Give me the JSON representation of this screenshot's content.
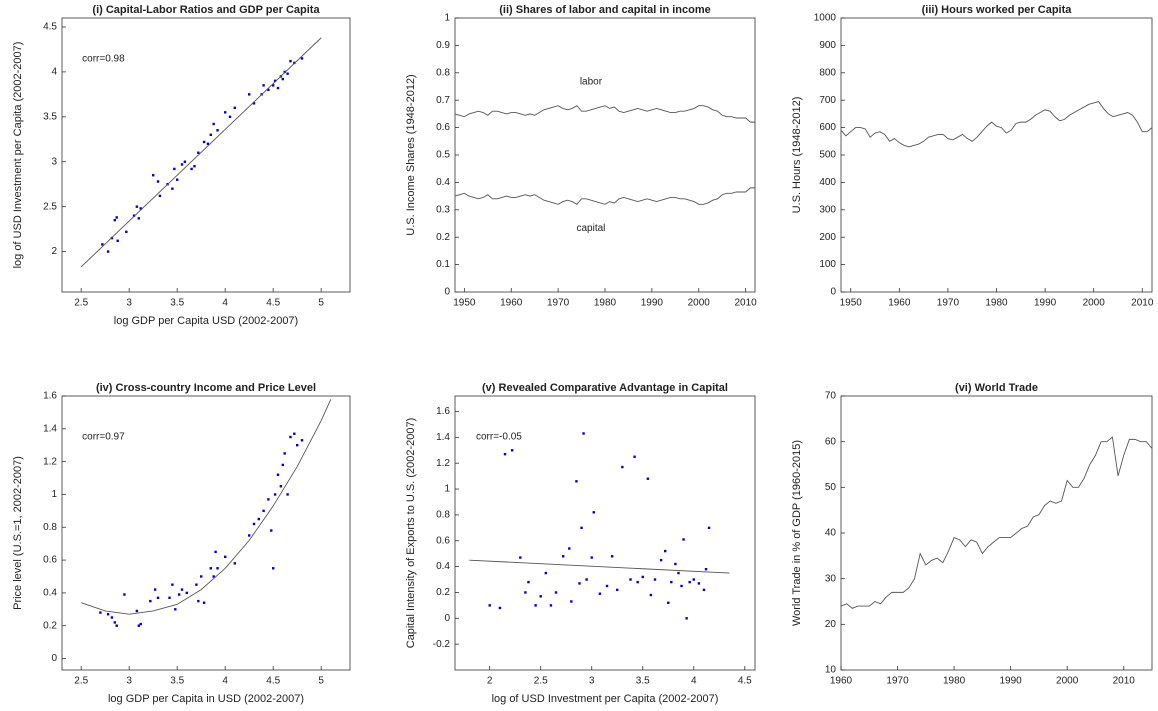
{
  "chart_data": [
    {
      "type": "scatter",
      "title": "(i) Capital-Labor Ratios and GDP per Capita",
      "xlabel": "log GDP per Capita USD (2002-2007)",
      "ylabel": "log of USD Investment per Capita (2002-2007)",
      "annotation": "corr=0.98",
      "xlim": [
        2.3,
        5.3
      ],
      "ylim": [
        1.55,
        4.6
      ],
      "xticks": [
        2.5,
        3,
        3.5,
        4,
        4.5,
        5
      ],
      "yticks": [
        2,
        2.5,
        3,
        3.5,
        4,
        4.5
      ],
      "series": [
        {
          "type": "scatter",
          "color": "#0000cc",
          "x": [
            2.72,
            2.78,
            2.82,
            2.85,
            2.87,
            2.88,
            2.97,
            3.05,
            3.08,
            3.1,
            3.12,
            3.25,
            3.3,
            3.32,
            3.4,
            3.45,
            3.47,
            3.5,
            3.55,
            3.58,
            3.65,
            3.68,
            3.72,
            3.78,
            3.82,
            3.85,
            3.88,
            3.92,
            4.0,
            4.05,
            4.1,
            4.25,
            4.3,
            4.38,
            4.4,
            4.45,
            4.5,
            4.52,
            4.55,
            4.58,
            4.6,
            4.62,
            4.65,
            4.68,
            4.72,
            4.8
          ],
          "values": [
            2.08,
            2,
            2.15,
            2.35,
            2.38,
            2.12,
            2.22,
            2.4,
            2.5,
            2.37,
            2.48,
            2.85,
            2.78,
            2.62,
            2.75,
            2.7,
            2.92,
            2.8,
            2.97,
            3.0,
            2.92,
            2.95,
            3.1,
            3.22,
            3.2,
            3.3,
            3.42,
            3.35,
            3.55,
            3.5,
            3.6,
            3.75,
            3.65,
            3.75,
            3.85,
            3.8,
            3.85,
            3.9,
            3.82,
            3.95,
            3.92,
            4.0,
            3.98,
            4.12,
            4.1,
            4.15
          ]
        },
        {
          "type": "line",
          "color": "#555555",
          "x": [
            2.5,
            5
          ],
          "values": [
            1.83,
            4.38
          ]
        }
      ]
    },
    {
      "type": "line",
      "title": "(ii) Shares of labor and capital in income",
      "ylabel": "U.S. Income Shares (1948-2012)",
      "xlim": [
        1948,
        2012
      ],
      "ylim": [
        0,
        1
      ],
      "xticks": [
        1950,
        1960,
        1970,
        1980,
        1990,
        2000,
        2010
      ],
      "yticks": [
        0,
        0.1,
        0.2,
        0.3,
        0.4,
        0.5,
        0.6,
        0.7,
        0.8,
        0.9,
        1
      ],
      "series": [
        {
          "type": "line",
          "name": "labor",
          "color": "#555555",
          "x": [
            1948,
            1949,
            1950,
            1951,
            1952,
            1953,
            1954,
            1955,
            1956,
            1957,
            1958,
            1959,
            1960,
            1961,
            1962,
            1963,
            1964,
            1965,
            1966,
            1967,
            1968,
            1969,
            1970,
            1971,
            1972,
            1973,
            1974,
            1975,
            1976,
            1977,
            1978,
            1979,
            1980,
            1981,
            1982,
            1983,
            1984,
            1985,
            1986,
            1987,
            1988,
            1989,
            1990,
            1991,
            1992,
            1993,
            1994,
            1995,
            1996,
            1997,
            1998,
            1999,
            2000,
            2001,
            2002,
            2003,
            2004,
            2005,
            2006,
            2007,
            2008,
            2009,
            2010,
            2011,
            2012
          ],
          "values": [
            0.65,
            0.645,
            0.64,
            0.65,
            0.655,
            0.66,
            0.655,
            0.645,
            0.66,
            0.66,
            0.655,
            0.65,
            0.655,
            0.655,
            0.65,
            0.645,
            0.65,
            0.645,
            0.655,
            0.665,
            0.67,
            0.675,
            0.68,
            0.67,
            0.665,
            0.67,
            0.68,
            0.66,
            0.66,
            0.665,
            0.67,
            0.675,
            0.68,
            0.67,
            0.675,
            0.66,
            0.655,
            0.66,
            0.665,
            0.67,
            0.665,
            0.66,
            0.665,
            0.67,
            0.665,
            0.66,
            0.655,
            0.655,
            0.66,
            0.66,
            0.665,
            0.67,
            0.68,
            0.68,
            0.675,
            0.665,
            0.66,
            0.645,
            0.64,
            0.64,
            0.635,
            0.635,
            0.635,
            0.62,
            0.62
          ]
        },
        {
          "type": "line",
          "name": "capital",
          "color": "#555555",
          "x": [
            1948,
            1949,
            1950,
            1951,
            1952,
            1953,
            1954,
            1955,
            1956,
            1957,
            1958,
            1959,
            1960,
            1961,
            1962,
            1963,
            1964,
            1965,
            1966,
            1967,
            1968,
            1969,
            1970,
            1971,
            1972,
            1973,
            1974,
            1975,
            1976,
            1977,
            1978,
            1979,
            1980,
            1981,
            1982,
            1983,
            1984,
            1985,
            1986,
            1987,
            1988,
            1989,
            1990,
            1991,
            1992,
            1993,
            1994,
            1995,
            1996,
            1997,
            1998,
            1999,
            2000,
            2001,
            2002,
            2003,
            2004,
            2005,
            2006,
            2007,
            2008,
            2009,
            2010,
            2011,
            2012
          ],
          "values": [
            0.35,
            0.355,
            0.36,
            0.35,
            0.345,
            0.34,
            0.345,
            0.355,
            0.34,
            0.34,
            0.345,
            0.35,
            0.345,
            0.345,
            0.35,
            0.355,
            0.35,
            0.355,
            0.345,
            0.335,
            0.33,
            0.325,
            0.32,
            0.33,
            0.335,
            0.33,
            0.32,
            0.34,
            0.34,
            0.335,
            0.33,
            0.325,
            0.32,
            0.33,
            0.325,
            0.34,
            0.345,
            0.34,
            0.335,
            0.33,
            0.335,
            0.34,
            0.335,
            0.33,
            0.335,
            0.34,
            0.345,
            0.345,
            0.34,
            0.34,
            0.335,
            0.33,
            0.32,
            0.32,
            0.325,
            0.335,
            0.34,
            0.355,
            0.36,
            0.36,
            0.365,
            0.365,
            0.365,
            0.38,
            0.38
          ]
        }
      ]
    },
    {
      "type": "line",
      "title": "(iii) Hours worked per Capita",
      "ylabel": "U.S. Hours (1948-2012)",
      "xlim": [
        1948,
        2012
      ],
      "ylim": [
        0,
        1000
      ],
      "xticks": [
        1950,
        1960,
        1970,
        1980,
        1990,
        2000,
        2010
      ],
      "yticks": [
        0,
        100,
        200,
        300,
        400,
        500,
        600,
        700,
        800,
        900,
        1000
      ],
      "series": [
        {
          "type": "line",
          "color": "#555555",
          "x": [
            1948,
            1949,
            1950,
            1951,
            1952,
            1953,
            1954,
            1955,
            1956,
            1957,
            1958,
            1959,
            1960,
            1961,
            1962,
            1963,
            1964,
            1965,
            1966,
            1967,
            1968,
            1969,
            1970,
            1971,
            1972,
            1973,
            1974,
            1975,
            1976,
            1977,
            1978,
            1979,
            1980,
            1981,
            1982,
            1983,
            1984,
            1985,
            1986,
            1987,
            1988,
            1989,
            1990,
            1991,
            1992,
            1993,
            1994,
            1995,
            1996,
            1997,
            1998,
            1999,
            2000,
            2001,
            2002,
            2003,
            2004,
            2005,
            2006,
            2007,
            2008,
            2009,
            2010,
            2011,
            2012
          ],
          "values": [
            590,
            570,
            585,
            600,
            600,
            595,
            565,
            580,
            585,
            575,
            550,
            560,
            545,
            535,
            530,
            535,
            540,
            550,
            565,
            570,
            575,
            575,
            560,
            555,
            565,
            575,
            560,
            550,
            565,
            585,
            605,
            620,
            605,
            600,
            580,
            590,
            615,
            620,
            620,
            630,
            645,
            655,
            665,
            660,
            640,
            625,
            630,
            645,
            655,
            665,
            675,
            685,
            690,
            695,
            670,
            650,
            640,
            645,
            650,
            655,
            645,
            620,
            585,
            585,
            600
          ]
        }
      ]
    },
    {
      "type": "scatter",
      "title": "(iv) Cross-country Income and Price Level",
      "xlabel": "log GDP per Capita in USD (2002-2007)",
      "ylabel": "Price level (U.S.=1, 2002-2007)",
      "annotation": "corr=0.97",
      "xlim": [
        2.3,
        5.3
      ],
      "ylim": [
        -0.07,
        1.6
      ],
      "xticks": [
        2.5,
        3,
        3.5,
        4,
        4.5,
        5
      ],
      "yticks": [
        0,
        0.2,
        0.4,
        0.6,
        0.8,
        1,
        1.2,
        1.4,
        1.6
      ],
      "series": [
        {
          "type": "scatter",
          "color": "#0000cc",
          "x": [
            2.7,
            2.78,
            2.82,
            2.85,
            2.87,
            2.95,
            3.08,
            3.1,
            3.12,
            3.22,
            3.27,
            3.3,
            3.42,
            3.45,
            3.48,
            3.52,
            3.55,
            3.6,
            3.7,
            3.72,
            3.75,
            3.78,
            3.85,
            3.88,
            3.9,
            3.92,
            4.0,
            4.1,
            4.25,
            4.3,
            4.35,
            4.4,
            4.45,
            4.48,
            4.5,
            4.52,
            4.55,
            4.58,
            4.6,
            4.62,
            4.65,
            4.68,
            4.72,
            4.75,
            4.8
          ],
          "values": [
            0.28,
            0.27,
            0.25,
            0.22,
            0.2,
            0.39,
            0.29,
            0.2,
            0.21,
            0.35,
            0.42,
            0.37,
            0.37,
            0.45,
            0.3,
            0.39,
            0.42,
            0.4,
            0.45,
            0.35,
            0.5,
            0.34,
            0.55,
            0.5,
            0.65,
            0.55,
            0.62,
            0.58,
            0.75,
            0.82,
            0.85,
            0.9,
            0.97,
            0.78,
            0.55,
            1.0,
            1.12,
            1.05,
            1.18,
            1.25,
            1.0,
            1.35,
            1.37,
            1.3,
            1.33
          ]
        },
        {
          "type": "line",
          "color": "#555555",
          "x": [
            2.5,
            2.75,
            3,
            3.25,
            3.5,
            3.75,
            4,
            4.25,
            4.5,
            4.75,
            5,
            5.1
          ],
          "values": [
            0.34,
            0.29,
            0.27,
            0.29,
            0.33,
            0.42,
            0.55,
            0.72,
            0.93,
            1.17,
            1.45,
            1.58
          ]
        }
      ]
    },
    {
      "type": "scatter",
      "title": "(v) Revealed Comparative Advantage in Capital",
      "xlabel": "log of USD Investment per Capita (2002-2007)",
      "ylabel": "Capital Intensity of Exports to U.S. (2002-2007)",
      "annotation": "corr=-0.05",
      "xlim": [
        1.66,
        4.6
      ],
      "ylim": [
        -0.4,
        1.72
      ],
      "xticks": [
        2,
        2.5,
        3,
        3.5,
        4,
        4.5
      ],
      "yticks": [
        -0.2,
        0,
        0.2,
        0.4,
        0.6,
        0.8,
        1,
        1.2,
        1.4,
        1.6
      ],
      "series": [
        {
          "type": "scatter",
          "color": "#0000cc",
          "x": [
            2.0,
            2.1,
            2.15,
            2.22,
            2.3,
            2.35,
            2.38,
            2.45,
            2.5,
            2.55,
            2.6,
            2.65,
            2.72,
            2.78,
            2.8,
            2.85,
            2.88,
            2.9,
            2.92,
            2.95,
            3.0,
            3.02,
            3.08,
            3.15,
            3.2,
            3.25,
            3.3,
            3.38,
            3.42,
            3.45,
            3.5,
            3.55,
            3.58,
            3.62,
            3.68,
            3.72,
            3.75,
            3.78,
            3.82,
            3.85,
            3.88,
            3.9,
            3.93,
            3.96,
            4.0,
            4.05,
            4.1,
            4.12,
            4.15
          ],
          "values": [
            0.1,
            0.08,
            1.27,
            1.3,
            0.47,
            0.2,
            0.28,
            0.1,
            0.17,
            0.35,
            0.1,
            0.2,
            0.48,
            0.54,
            0.13,
            1.06,
            0.27,
            0.7,
            1.43,
            0.3,
            0.47,
            0.82,
            0.19,
            0.25,
            0.48,
            0.22,
            1.17,
            0.3,
            1.25,
            0.28,
            0.32,
            1.08,
            0.18,
            0.3,
            0.45,
            0.52,
            0.12,
            0.28,
            0.42,
            0.35,
            0.25,
            0.61,
            0.0,
            0.28,
            0.3,
            0.27,
            0.22,
            0.38,
            0.7
          ]
        },
        {
          "type": "line",
          "color": "#555555",
          "x": [
            1.8,
            4.35
          ],
          "values": [
            0.45,
            0.35
          ]
        }
      ]
    },
    {
      "type": "line",
      "title": "(vi) World Trade",
      "ylabel": "World Trade in % of GDP (1960-2015)",
      "xlim": [
        1960,
        2015
      ],
      "ylim": [
        10,
        70
      ],
      "xticks": [
        1960,
        1970,
        1980,
        1990,
        2000,
        2010
      ],
      "yticks": [
        10,
        20,
        30,
        40,
        50,
        60,
        70
      ],
      "series": [
        {
          "type": "line",
          "color": "#555555",
          "x": [
            1960,
            1961,
            1962,
            1963,
            1964,
            1965,
            1966,
            1967,
            1968,
            1969,
            1970,
            1971,
            1972,
            1973,
            1974,
            1975,
            1976,
            1977,
            1978,
            1979,
            1980,
            1981,
            1982,
            1983,
            1984,
            1985,
            1986,
            1987,
            1988,
            1989,
            1990,
            1991,
            1992,
            1993,
            1994,
            1995,
            1996,
            1997,
            1998,
            1999,
            2000,
            2001,
            2002,
            2003,
            2004,
            2005,
            2006,
            2007,
            2008,
            2009,
            2010,
            2011,
            2012,
            2013,
            2014,
            2015
          ],
          "values": [
            24,
            24.5,
            23.5,
            24,
            24,
            24,
            25,
            24.5,
            26,
            27,
            27,
            27,
            28,
            30,
            35.5,
            33,
            34,
            34.5,
            33.5,
            36,
            39,
            38.5,
            37,
            38.5,
            38,
            35.5,
            37,
            38,
            39,
            39,
            39,
            40,
            41,
            41.5,
            43.5,
            44,
            46,
            47,
            46.5,
            47,
            51.5,
            50,
            50,
            52,
            55,
            57,
            60,
            60,
            61,
            52.5,
            57,
            60.5,
            60.5,
            60,
            60,
            58.5
          ]
        }
      ]
    }
  ]
}
